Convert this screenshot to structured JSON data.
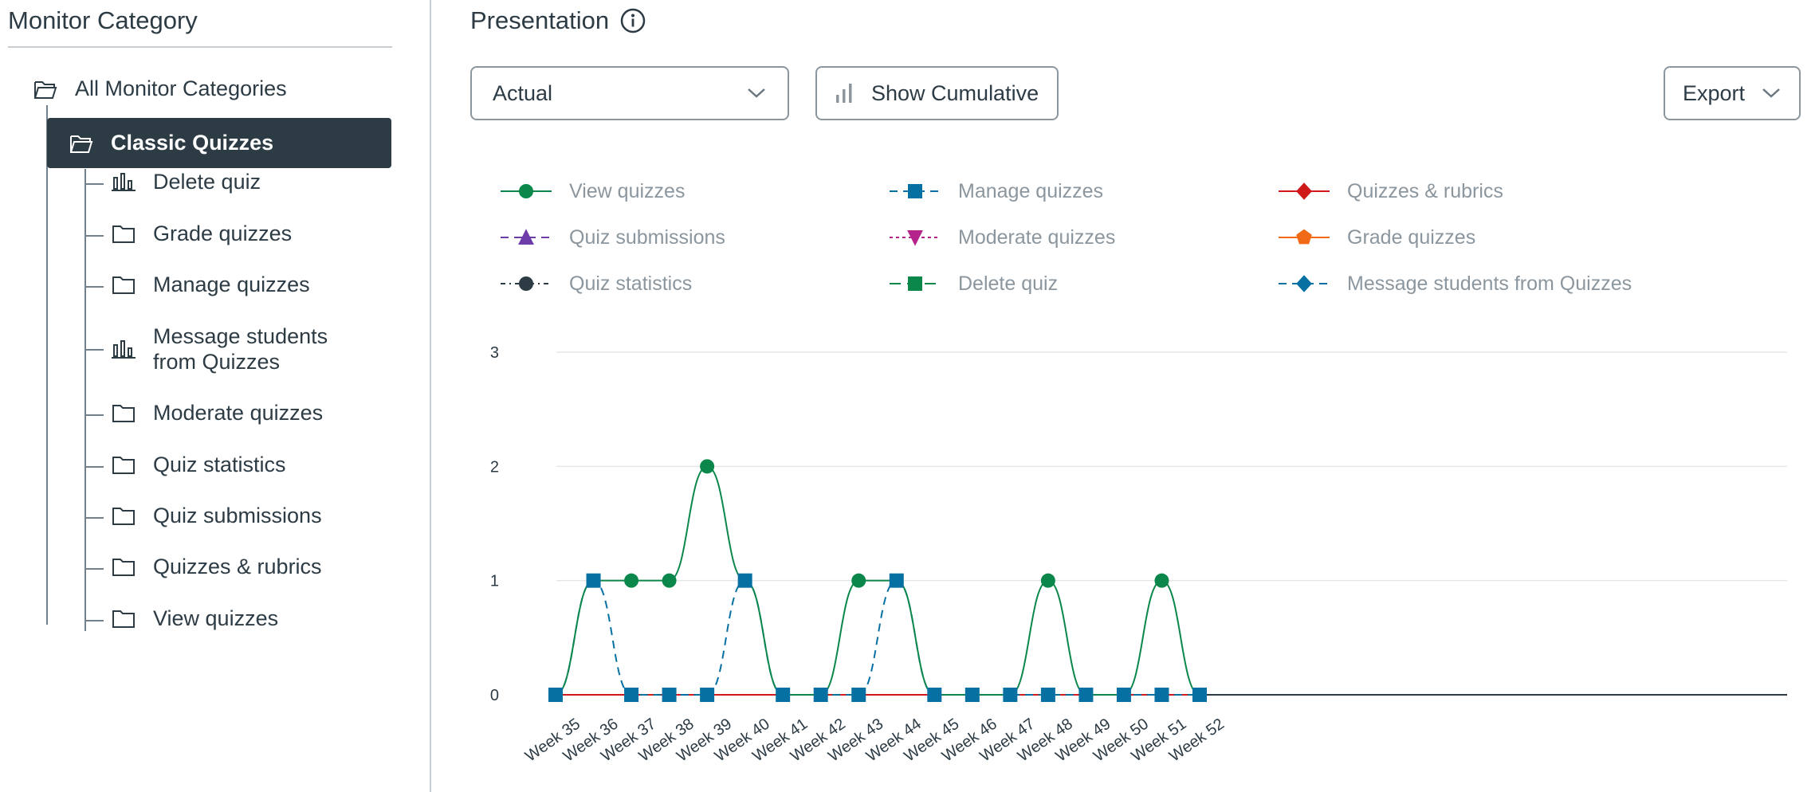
{
  "sidebar": {
    "title": "Monitor Category",
    "root": {
      "label": "All Monitor Categories",
      "icon": "folder-open-icon"
    },
    "selected": {
      "label": "Classic Quizzes",
      "icon": "folder-open-icon"
    },
    "items": [
      {
        "label": "Delete quiz",
        "icon": "bar-chart-icon"
      },
      {
        "label": "Grade quizzes",
        "icon": "folder-icon"
      },
      {
        "label": "Manage quizzes",
        "icon": "folder-icon"
      },
      {
        "label": "Message students from Quizzes",
        "icon": "bar-chart-icon"
      },
      {
        "label": "Moderate quizzes",
        "icon": "folder-icon"
      },
      {
        "label": "Quiz statistics",
        "icon": "folder-icon"
      },
      {
        "label": "Quiz submissions",
        "icon": "folder-icon"
      },
      {
        "label": "Quizzes & rubrics",
        "icon": "folder-icon"
      },
      {
        "label": "View quizzes",
        "icon": "folder-icon"
      }
    ]
  },
  "main": {
    "title": "Presentation",
    "view_select": {
      "value": "Actual"
    },
    "cumulative_button": "Show Cumulative",
    "export_button": "Export"
  },
  "chart_data": {
    "type": "line",
    "categories": [
      "Week 35",
      "Week 36",
      "Week 37",
      "Week 38",
      "Week 39",
      "Week 40",
      "Week 41",
      "Week 42",
      "Week 43",
      "Week 44",
      "Week 45",
      "Week 46",
      "Week 47",
      "Week 48",
      "Week 49",
      "Week 50",
      "Week 51",
      "Week 52"
    ],
    "ylim": [
      0,
      3
    ],
    "yticks": [
      0,
      1,
      2,
      3
    ],
    "grid": true,
    "legend_position": "top",
    "series": [
      {
        "name": "View quizzes",
        "color": "#0b874b",
        "marker": "circle",
        "dash": "solid",
        "values": [
          0,
          1,
          1,
          1,
          2,
          1,
          0,
          0,
          1,
          1,
          0,
          0,
          0,
          1,
          0,
          0,
          1,
          0
        ]
      },
      {
        "name": "Manage quizzes",
        "color": "#0770a3",
        "marker": "square",
        "dash": "dashed",
        "values": [
          0,
          1,
          0,
          0,
          0,
          1,
          0,
          0,
          0,
          1,
          0,
          0,
          0,
          0,
          0,
          0,
          0,
          0
        ]
      },
      {
        "name": "Quizzes & rubrics",
        "color": "#d01a19",
        "marker": "diamond",
        "dash": "solid",
        "values": [
          0,
          0,
          0,
          0,
          0,
          0,
          0,
          0,
          0,
          0,
          0,
          0,
          0,
          0,
          0,
          0,
          0,
          0
        ]
      },
      {
        "name": "Quiz submissions",
        "color": "#6e3ca8",
        "marker": "triangle",
        "dash": "dashed",
        "values": [
          0,
          0,
          0,
          0,
          0,
          0,
          0,
          0,
          0,
          0,
          0,
          0,
          0,
          0,
          0,
          0,
          0,
          0
        ]
      },
      {
        "name": "Moderate quizzes",
        "color": "#b5248a",
        "marker": "triangle-down",
        "dash": "dotted",
        "values": [
          0,
          0,
          0,
          0,
          0,
          0,
          0,
          0,
          0,
          0,
          0,
          0,
          0,
          0,
          0,
          0,
          0,
          0
        ]
      },
      {
        "name": "Grade quizzes",
        "color": "#f06a18",
        "marker": "pentagon",
        "dash": "solid",
        "values": [
          0,
          0,
          0,
          0,
          0,
          0,
          0,
          0,
          0,
          0,
          0,
          0,
          0,
          0,
          0,
          0,
          0,
          0
        ]
      },
      {
        "name": "Quiz statistics",
        "color": "#2d3b45",
        "marker": "circle",
        "dash": "dashdot",
        "values": [
          0,
          0,
          0,
          0,
          0,
          0,
          0,
          0,
          0,
          0,
          0,
          0,
          0,
          0,
          0,
          0,
          0,
          0
        ]
      },
      {
        "name": "Delete quiz",
        "color": "#0b874b",
        "marker": "square",
        "dash": "longdash",
        "values": [
          0,
          0,
          0,
          0,
          0,
          0,
          0,
          0,
          0,
          0,
          0,
          0,
          0,
          0,
          0,
          0,
          0,
          0
        ]
      },
      {
        "name": "Message students from Quizzes",
        "color": "#0770a3",
        "marker": "diamond",
        "dash": "dashed",
        "values": [
          0,
          0,
          0,
          0,
          0,
          0,
          0,
          0,
          0,
          0,
          0,
          0,
          0,
          0,
          0,
          0,
          0,
          0
        ]
      }
    ]
  }
}
